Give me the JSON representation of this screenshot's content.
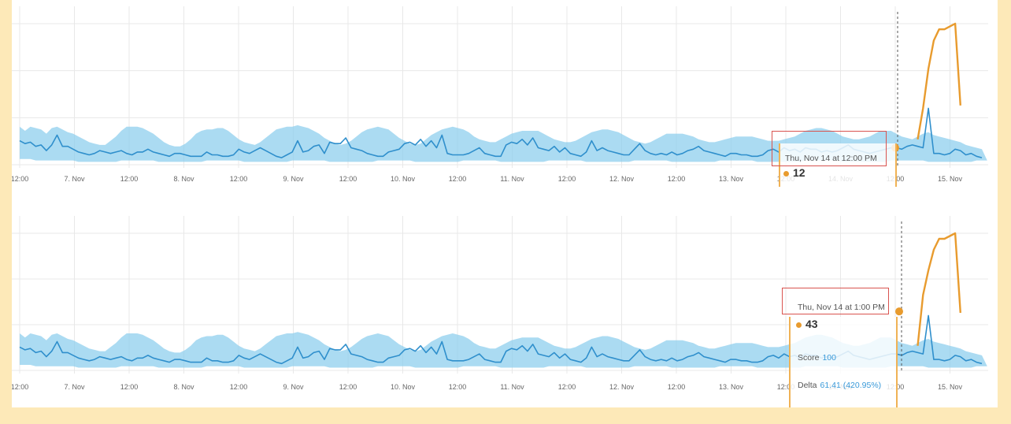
{
  "colors": {
    "band": "#8fcfee",
    "line": "#2f8fcc",
    "anomaly": "#e89b2e",
    "highlight_box": "#d9534f",
    "grid": "#e8e8e8"
  },
  "chart_data": [
    {
      "type": "area",
      "x_ticks": [
        "12:00",
        "7. Nov",
        "12:00",
        "8. Nov",
        "12:00",
        "9. Nov",
        "12:00",
        "10. Nov",
        "12:00",
        "11. Nov",
        "12:00",
        "12. Nov",
        "12:00",
        "13. Nov",
        "12:00",
        "14. Nov",
        "12:00",
        "15. Nov"
      ],
      "x_range": [
        "2019-11-06 12:00",
        "2019-11-15 18:00"
      ],
      "ylim": [
        0,
        100
      ],
      "series": [
        {
          "role": "actual",
          "y": [
            17,
            15,
            16,
            13,
            14,
            10,
            14,
            21,
            13,
            13,
            11,
            9,
            8,
            7,
            8,
            10,
            9,
            8,
            9,
            10,
            8,
            7,
            9,
            9,
            11,
            9,
            8,
            7,
            6,
            8,
            8,
            7,
            6,
            6,
            6,
            9,
            7,
            7,
            6,
            6,
            7,
            11,
            9,
            8,
            10,
            12,
            10,
            8,
            6,
            5,
            7,
            9,
            17,
            9,
            10,
            13,
            14,
            8,
            16,
            15,
            15,
            19,
            12,
            11,
            10,
            8,
            7,
            6,
            6,
            9,
            10,
            11,
            15,
            16,
            14,
            18,
            13,
            17,
            12,
            21,
            8,
            7,
            7,
            7,
            8,
            10,
            12,
            8,
            7,
            6,
            6,
            14,
            16,
            15,
            18,
            14,
            19,
            12,
            11,
            10,
            13,
            9,
            12,
            8,
            7,
            6,
            9,
            17,
            10,
            12,
            10,
            9,
            8,
            7,
            7,
            11,
            15,
            10,
            8,
            7,
            8,
            7,
            9,
            7,
            8,
            10,
            11,
            13,
            10,
            9,
            8,
            7,
            6,
            8,
            8,
            7,
            7,
            6,
            6,
            7,
            10,
            11,
            9,
            12,
            10,
            11,
            9,
            12,
            11,
            11,
            9,
            10,
            9,
            10,
            12,
            14,
            11,
            10,
            9,
            8,
            9,
            10,
            11,
            12,
            12,
            11,
            13,
            14,
            13,
            12,
            40,
            8,
            8,
            7,
            8,
            11,
            10,
            7,
            8,
            6,
            5
          ]
        },
        {
          "role": "expected_upper",
          "y": [
            27,
            24,
            27,
            26,
            25,
            22,
            26,
            27,
            25,
            23,
            22,
            20,
            18,
            16,
            15,
            14,
            14,
            17,
            20,
            24,
            27,
            27,
            27,
            26,
            24,
            22,
            19,
            16,
            14,
            13,
            13,
            15,
            18,
            22,
            24,
            25,
            25,
            26,
            26,
            24,
            21,
            18,
            16,
            15,
            14,
            16,
            19,
            22,
            25,
            26,
            27,
            27,
            28,
            27,
            26,
            24,
            22,
            19,
            17,
            15,
            14,
            15,
            17,
            20,
            23,
            25,
            26,
            27,
            26,
            25,
            22,
            19,
            17,
            15,
            14,
            15,
            18,
            21,
            23,
            25,
            26,
            27,
            26,
            25,
            23,
            20,
            18,
            17,
            16,
            16,
            18,
            20,
            22,
            23,
            24,
            24,
            24,
            24,
            22,
            20,
            18,
            17,
            16,
            16,
            17,
            19,
            21,
            23,
            24,
            25,
            25,
            24,
            23,
            21,
            19,
            17,
            16,
            15,
            16,
            18,
            20,
            22,
            22,
            22,
            22,
            21,
            20,
            18,
            17,
            16,
            16,
            17,
            18,
            19,
            20,
            20,
            20,
            20,
            19,
            18,
            17,
            17,
            17,
            18,
            19,
            20,
            22,
            24,
            25,
            26,
            26,
            25,
            24,
            22,
            20,
            19,
            18,
            18,
            19,
            20,
            22,
            24,
            24,
            24,
            22,
            20,
            19,
            18,
            20,
            22,
            23,
            21,
            20,
            19,
            18,
            17,
            16,
            14,
            13,
            12,
            11
          ]
        },
        {
          "role": "expected_lower",
          "y": [
            4,
            4,
            4,
            3,
            3,
            3,
            3,
            3,
            3,
            3,
            3,
            2,
            2,
            2,
            2,
            2,
            2,
            2,
            2,
            3,
            3,
            3,
            3,
            3,
            3,
            3,
            2,
            2,
            2,
            2,
            2,
            2,
            2,
            2,
            2,
            3,
            3,
            3,
            3,
            3,
            3,
            3,
            2,
            2,
            2,
            2,
            2,
            2,
            2,
            2,
            2,
            3,
            3,
            3,
            3,
            3,
            3,
            3,
            2,
            2,
            2,
            2,
            2,
            2,
            2,
            2,
            2,
            3,
            3,
            3,
            3,
            3,
            3,
            3,
            2,
            2,
            2,
            2,
            2,
            2,
            2,
            2,
            2,
            3,
            3,
            3,
            3,
            3,
            3,
            3,
            2,
            2,
            2,
            2,
            2,
            2,
            2,
            2,
            2,
            3,
            3,
            3,
            3,
            3,
            3,
            3,
            2,
            2,
            2,
            2,
            2,
            2,
            2,
            2,
            2,
            3,
            3,
            3,
            3,
            3,
            3,
            3,
            2,
            2,
            2,
            2,
            2,
            2,
            2,
            2,
            2,
            3,
            3,
            3,
            3,
            3,
            3,
            3,
            2,
            2,
            2,
            2,
            2,
            2,
            2,
            2,
            2,
            3,
            3,
            3,
            3,
            3,
            3,
            3,
            2,
            2,
            2,
            2,
            2,
            2,
            2,
            2,
            2,
            3,
            3,
            3,
            3,
            3,
            3,
            3,
            2,
            2,
            2,
            2,
            2,
            2,
            2,
            2,
            2,
            3,
            3,
            3
          ]
        },
        {
          "role": "anomaly",
          "start_index": 168,
          "y": [
            18,
            40,
            68,
            88,
            96,
            96,
            98,
            100,
            42
          ]
        }
      ],
      "tooltip": {
        "date": "Thu, Nov 14 at 12:00 PM",
        "value": "12"
      }
    },
    {
      "type": "area",
      "x_ticks": [
        "12:00",
        "7. Nov",
        "12:00",
        "8. Nov",
        "12:00",
        "9. Nov",
        "12:00",
        "10. Nov",
        "12:00",
        "11. Nov",
        "12:00",
        "12. Nov",
        "12:00",
        "13. Nov",
        "12:00",
        "14. Nov",
        "12:00",
        "15. Nov"
      ],
      "x_range": [
        "2019-11-06 12:00",
        "2019-11-15 18:00"
      ],
      "ylim": [
        0,
        100
      ],
      "series": [
        {
          "role": "actual",
          "y": [
            17,
            15,
            16,
            13,
            14,
            10,
            14,
            21,
            13,
            13,
            11,
            9,
            8,
            7,
            8,
            10,
            9,
            8,
            9,
            10,
            8,
            7,
            9,
            9,
            11,
            9,
            8,
            7,
            6,
            8,
            8,
            7,
            6,
            6,
            6,
            9,
            7,
            7,
            6,
            6,
            7,
            11,
            9,
            8,
            10,
            12,
            10,
            8,
            6,
            5,
            7,
            9,
            17,
            9,
            10,
            13,
            14,
            8,
            16,
            15,
            15,
            19,
            12,
            11,
            10,
            8,
            7,
            6,
            6,
            9,
            10,
            11,
            15,
            16,
            14,
            18,
            13,
            17,
            12,
            21,
            8,
            7,
            7,
            7,
            8,
            10,
            12,
            8,
            7,
            6,
            6,
            14,
            16,
            15,
            18,
            14,
            19,
            12,
            11,
            10,
            13,
            9,
            12,
            8,
            7,
            6,
            9,
            17,
            10,
            12,
            10,
            9,
            8,
            7,
            7,
            11,
            15,
            10,
            8,
            7,
            8,
            7,
            9,
            7,
            8,
            10,
            11,
            13,
            10,
            9,
            8,
            7,
            6,
            8,
            8,
            7,
            7,
            6,
            6,
            7,
            10,
            11,
            9,
            12,
            10,
            11,
            9,
            12,
            11,
            11,
            9,
            10,
            9,
            10,
            12,
            14,
            11,
            10,
            9,
            8,
            9,
            10,
            11,
            12,
            12,
            11,
            13,
            14,
            13,
            12,
            40,
            8,
            8,
            7,
            8,
            11,
            10,
            7,
            8,
            6,
            5
          ]
        },
        {
          "role": "expected_upper",
          "y": [
            27,
            24,
            27,
            26,
            25,
            22,
            26,
            27,
            25,
            23,
            22,
            20,
            18,
            16,
            15,
            14,
            14,
            17,
            20,
            24,
            27,
            27,
            27,
            26,
            24,
            22,
            19,
            16,
            14,
            13,
            13,
            15,
            18,
            22,
            24,
            25,
            25,
            26,
            26,
            24,
            21,
            18,
            16,
            15,
            14,
            16,
            19,
            22,
            25,
            26,
            27,
            27,
            28,
            27,
            26,
            24,
            22,
            19,
            17,
            15,
            14,
            15,
            17,
            20,
            23,
            25,
            26,
            27,
            26,
            25,
            22,
            19,
            17,
            15,
            14,
            15,
            18,
            21,
            23,
            25,
            26,
            27,
            26,
            25,
            23,
            20,
            18,
            17,
            16,
            16,
            18,
            20,
            22,
            23,
            24,
            24,
            24,
            24,
            22,
            20,
            18,
            17,
            16,
            16,
            17,
            19,
            21,
            23,
            24,
            25,
            25,
            24,
            23,
            21,
            19,
            17,
            16,
            15,
            16,
            18,
            20,
            22,
            22,
            22,
            22,
            21,
            20,
            18,
            17,
            16,
            16,
            17,
            18,
            19,
            20,
            20,
            20,
            20,
            19,
            18,
            17,
            17,
            17,
            18,
            19,
            20,
            22,
            24,
            25,
            26,
            26,
            25,
            24,
            22,
            20,
            19,
            18,
            18,
            19,
            20,
            22,
            24,
            24,
            24,
            22,
            20,
            19,
            18,
            20,
            22,
            23,
            21,
            20,
            19,
            18,
            17,
            16,
            14,
            13,
            12,
            11
          ]
        },
        {
          "role": "expected_lower",
          "y": [
            4,
            4,
            4,
            3,
            3,
            3,
            3,
            3,
            3,
            3,
            3,
            2,
            2,
            2,
            2,
            2,
            2,
            2,
            2,
            3,
            3,
            3,
            3,
            3,
            3,
            3,
            2,
            2,
            2,
            2,
            2,
            2,
            2,
            2,
            2,
            3,
            3,
            3,
            3,
            3,
            3,
            3,
            2,
            2,
            2,
            2,
            2,
            2,
            2,
            2,
            2,
            3,
            3,
            3,
            3,
            3,
            3,
            3,
            2,
            2,
            2,
            2,
            2,
            2,
            2,
            2,
            2,
            3,
            3,
            3,
            3,
            3,
            3,
            3,
            2,
            2,
            2,
            2,
            2,
            2,
            2,
            2,
            2,
            3,
            3,
            3,
            3,
            3,
            3,
            3,
            2,
            2,
            2,
            2,
            2,
            2,
            2,
            2,
            2,
            3,
            3,
            3,
            3,
            3,
            3,
            3,
            2,
            2,
            2,
            2,
            2,
            2,
            2,
            2,
            2,
            3,
            3,
            3,
            3,
            3,
            3,
            3,
            2,
            2,
            2,
            2,
            2,
            2,
            2,
            2,
            2,
            3,
            3,
            3,
            3,
            3,
            3,
            3,
            2,
            2,
            2,
            2,
            2,
            2,
            2,
            2,
            2,
            3,
            3,
            3,
            3,
            3,
            3,
            3,
            2,
            2,
            2,
            2,
            2,
            2,
            2,
            2,
            2,
            3,
            3,
            3,
            3,
            3,
            3,
            3,
            2,
            2,
            2,
            2,
            2,
            2,
            2,
            2,
            2,
            3,
            3,
            3
          ]
        },
        {
          "role": "anomaly",
          "start_index": 168,
          "y": [
            18,
            55,
            73,
            88,
            96,
            96,
            98,
            100,
            42
          ]
        }
      ],
      "tooltip": {
        "date": "Thu, Nov 14 at 1:00 PM",
        "value": "43",
        "score_label": "Score",
        "score_value": "100",
        "delta_label": "Delta",
        "delta_value": "61.41 (420.95%)"
      }
    }
  ]
}
